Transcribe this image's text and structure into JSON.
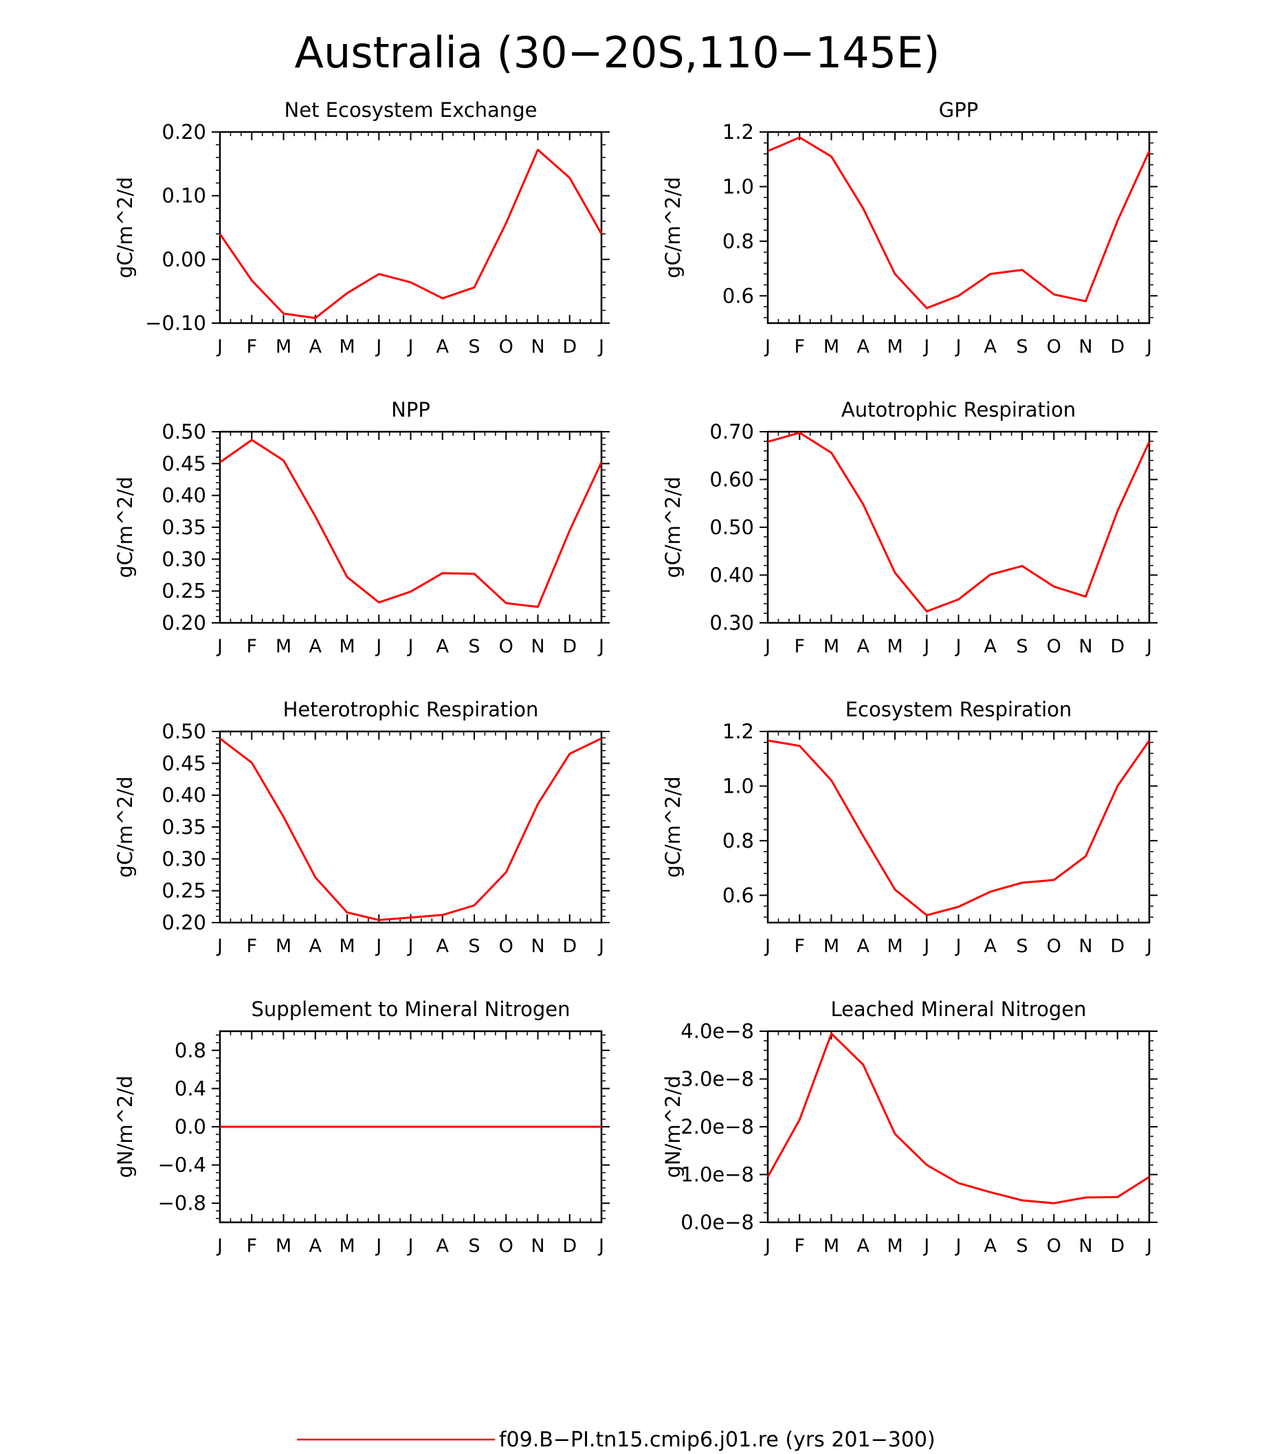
{
  "figure": {
    "title": "Australia (30−20S,110−145E)",
    "legend": {
      "label": "f09.B−PI.tn15.cmip6.j01.re (yrs 201−300)",
      "color": "#ff0000",
      "placement": "bottom-center"
    }
  },
  "chart_data": [
    {
      "type": "line",
      "title": "Net Ecosystem Exchange",
      "ylabel": "gC/m^2/d",
      "categories": [
        "J",
        "F",
        "M",
        "A",
        "M",
        "J",
        "J",
        "A",
        "S",
        "O",
        "N",
        "D",
        "J"
      ],
      "ylim": [
        -0.1,
        0.2
      ],
      "yticks": [
        -0.1,
        0.0,
        0.1,
        0.2
      ],
      "yticklabels": [
        "−0.10",
        "0.00",
        "0.10",
        "0.20"
      ],
      "series": [
        {
          "color": "#ff0000",
          "values": [
            0.04,
            -0.033,
            -0.085,
            -0.092,
            -0.053,
            -0.023,
            -0.036,
            -0.061,
            -0.044,
            0.057,
            0.172,
            0.128,
            0.04
          ]
        }
      ]
    },
    {
      "type": "line",
      "title": "GPP",
      "ylabel": "gC/m^2/d",
      "categories": [
        "J",
        "F",
        "M",
        "A",
        "M",
        "J",
        "J",
        "A",
        "S",
        "O",
        "N",
        "D",
        "J"
      ],
      "ylim": [
        0.5,
        1.2
      ],
      "yticks": [
        0.6,
        0.8,
        1.0,
        1.2
      ],
      "yticklabels": [
        "0.6",
        "0.8",
        "1.0",
        "1.2"
      ],
      "series": [
        {
          "color": "#ff0000",
          "values": [
            1.13,
            1.18,
            1.11,
            0.92,
            0.68,
            0.555,
            0.6,
            0.68,
            0.695,
            0.605,
            0.58,
            0.875,
            1.13
          ]
        }
      ]
    },
    {
      "type": "line",
      "title": "NPP",
      "ylabel": "gC/m^2/d",
      "categories": [
        "J",
        "F",
        "M",
        "A",
        "M",
        "J",
        "J",
        "A",
        "S",
        "O",
        "N",
        "D",
        "J"
      ],
      "ylim": [
        0.2,
        0.5
      ],
      "yticks": [
        0.2,
        0.25,
        0.3,
        0.35,
        0.4,
        0.45,
        0.5
      ],
      "yticklabels": [
        "0.20",
        "0.25",
        "0.30",
        "0.35",
        "0.40",
        "0.45",
        "0.50"
      ],
      "series": [
        {
          "color": "#ff0000",
          "values": [
            0.452,
            0.487,
            0.455,
            0.367,
            0.272,
            0.232,
            0.249,
            0.278,
            0.277,
            0.231,
            0.225,
            0.345,
            0.452
          ]
        }
      ]
    },
    {
      "type": "line",
      "title": "Autotrophic Respiration",
      "ylabel": "gC/m^2/d",
      "categories": [
        "J",
        "F",
        "M",
        "A",
        "M",
        "J",
        "J",
        "A",
        "S",
        "O",
        "N",
        "D",
        "J"
      ],
      "ylim": [
        0.3,
        0.7
      ],
      "yticks": [
        0.3,
        0.4,
        0.5,
        0.6,
        0.7
      ],
      "yticklabels": [
        "0.30",
        "0.40",
        "0.50",
        "0.60",
        "0.70"
      ],
      "series": [
        {
          "color": "#ff0000",
          "values": [
            0.679,
            0.698,
            0.656,
            0.548,
            0.405,
            0.324,
            0.349,
            0.401,
            0.419,
            0.376,
            0.355,
            0.534,
            0.679
          ]
        }
      ]
    },
    {
      "type": "line",
      "title": "Heterotrophic Respiration",
      "ylabel": "gC/m^2/d",
      "categories": [
        "J",
        "F",
        "M",
        "A",
        "M",
        "J",
        "J",
        "A",
        "S",
        "O",
        "N",
        "D",
        "J"
      ],
      "ylim": [
        0.2,
        0.5
      ],
      "yticks": [
        0.2,
        0.25,
        0.3,
        0.35,
        0.4,
        0.45,
        0.5
      ],
      "yticklabels": [
        "0.20",
        "0.25",
        "0.30",
        "0.35",
        "0.40",
        "0.45",
        "0.50"
      ],
      "series": [
        {
          "color": "#ff0000",
          "values": [
            0.489,
            0.451,
            0.366,
            0.271,
            0.216,
            0.204,
            0.208,
            0.212,
            0.227,
            0.279,
            0.386,
            0.465,
            0.489
          ]
        }
      ]
    },
    {
      "type": "line",
      "title": "Ecosystem Respiration",
      "ylabel": "gC/m^2/d",
      "categories": [
        "J",
        "F",
        "M",
        "A",
        "M",
        "J",
        "J",
        "A",
        "S",
        "O",
        "N",
        "D",
        "J"
      ],
      "ylim": [
        0.5,
        1.2
      ],
      "yticks": [
        0.6,
        0.8,
        1.0,
        1.2
      ],
      "yticklabels": [
        "0.6",
        "0.8",
        "1.0",
        "1.2"
      ],
      "series": [
        {
          "color": "#ff0000",
          "values": [
            1.167,
            1.147,
            1.021,
            0.817,
            0.621,
            0.527,
            0.558,
            0.613,
            0.646,
            0.656,
            0.743,
            1.0,
            1.167
          ]
        }
      ]
    },
    {
      "type": "line",
      "title": "Supplement to Mineral Nitrogen",
      "ylabel": "gN/m^2/d",
      "categories": [
        "J",
        "F",
        "M",
        "A",
        "M",
        "J",
        "J",
        "A",
        "S",
        "O",
        "N",
        "D",
        "J"
      ],
      "ylim": [
        -1.0,
        1.0
      ],
      "yticks": [
        -0.8,
        -0.4,
        0.0,
        0.4,
        0.8
      ],
      "yticklabels": [
        "−0.8",
        "−0.4",
        "0.0",
        "0.4",
        "0.8"
      ],
      "series": [
        {
          "color": "#ff0000",
          "values": [
            0,
            0,
            0,
            0,
            0,
            0,
            0,
            0,
            0,
            0,
            0,
            0,
            0
          ]
        }
      ]
    },
    {
      "type": "line",
      "title": "Leached Mineral Nitrogen",
      "ylabel": "gN/m^2/d",
      "categories": [
        "J",
        "F",
        "M",
        "A",
        "M",
        "J",
        "J",
        "A",
        "S",
        "O",
        "N",
        "D",
        "J"
      ],
      "ylim": [
        0.0,
        4e-08
      ],
      "yticks": [
        0.0,
        1e-08,
        2e-08,
        3e-08,
        4e-08
      ],
      "yticklabels": [
        "0.0e−8",
        "1.0e−8",
        "2.0e−8",
        "3.0e−8",
        "4.0e−8"
      ],
      "series": [
        {
          "color": "#ff0000",
          "values": [
            9.5e-09,
            2.15e-08,
            3.95e-08,
            3.3e-08,
            1.85e-08,
            1.2e-08,
            8.2e-09,
            6.3e-09,
            4.6e-09,
            4e-09,
            5.2e-09,
            5.3e-09,
            9.5e-09
          ]
        }
      ]
    }
  ]
}
